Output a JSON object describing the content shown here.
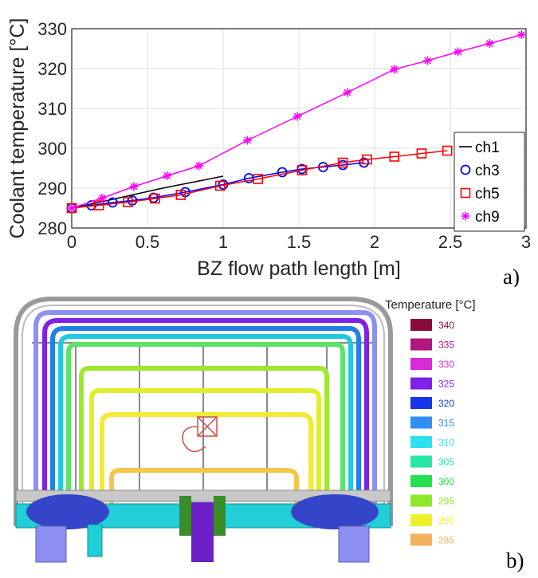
{
  "panel_a": {
    "letter": "a)",
    "legend": [
      "ch1",
      "ch3",
      "ch5",
      "ch9"
    ]
  },
  "panel_b": {
    "letter": "b)",
    "scale_title": "Temperature [°C]",
    "scale": [
      {
        "label": "340",
        "color": "#8b0a3c"
      },
      {
        "label": "335",
        "color": "#b0177e"
      },
      {
        "label": "330",
        "color": "#d92ad6"
      },
      {
        "label": "325",
        "color": "#7d22e6"
      },
      {
        "label": "320",
        "color": "#1836e8"
      },
      {
        "label": "315",
        "color": "#2f8ff2"
      },
      {
        "label": "310",
        "color": "#2de2ee"
      },
      {
        "label": "305",
        "color": "#27e6a6"
      },
      {
        "label": "300",
        "color": "#22e04e"
      },
      {
        "label": "295",
        "color": "#8fe82a"
      },
      {
        "label": "290",
        "color": "#f0f02a"
      },
      {
        "label": "285",
        "color": "#f5b25a"
      }
    ],
    "colors": {
      "gray": "#9a9a9a",
      "cyan": "#22cfd8",
      "blue_dark": "#3445c9",
      "purple_dark": "#6d1fc8",
      "green_dark": "#3a8b2a",
      "lilac": "#8d8ff0"
    }
  },
  "chart_data": {
    "type": "line",
    "title": "",
    "xlabel": "BZ flow path length [m]",
    "ylabel": "Coolant temperature [°C]",
    "xlim": [
      0,
      3
    ],
    "ylim": [
      280,
      330
    ],
    "xticks": [
      "0",
      "0.5",
      "1",
      "1.5",
      "2",
      "2.5",
      "3"
    ],
    "yticks": [
      "280",
      "290",
      "300",
      "310",
      "320",
      "330"
    ],
    "grid": true,
    "legend_position": "lower-right",
    "series": [
      {
        "name": "ch1",
        "color": "#000000",
        "marker": "none",
        "x": [
          0,
          0.2,
          0.4,
          0.6,
          0.8,
          1.0
        ],
        "y": [
          285,
          286.6,
          288.3,
          290.0,
          291.5,
          293.0
        ]
      },
      {
        "name": "ch3",
        "color": "#0000ff",
        "marker": "circle",
        "x": [
          0,
          0.13,
          0.27,
          0.4,
          0.54,
          0.75,
          1.0,
          1.17,
          1.39,
          1.52,
          1.66,
          1.79,
          1.93
        ],
        "y": [
          285,
          285.7,
          286.4,
          286.9,
          287.6,
          289.0,
          290.9,
          292.5,
          294.0,
          294.8,
          295.3,
          295.8,
          296.4
        ]
      },
      {
        "name": "ch5",
        "color": "#ff0000",
        "marker": "square",
        "x": [
          0,
          0.18,
          0.37,
          0.55,
          0.72,
          0.98,
          1.23,
          1.52,
          1.79,
          1.95,
          2.13,
          2.31,
          2.48
        ],
        "y": [
          285,
          285.7,
          286.5,
          287.4,
          288.3,
          290.6,
          292.3,
          294.5,
          296.4,
          297.2,
          297.9,
          298.7,
          299.4
        ]
      },
      {
        "name": "ch9",
        "color": "#ff00ff",
        "marker": "star",
        "x": [
          0,
          0.2,
          0.41,
          0.63,
          0.84,
          1.16,
          1.49,
          1.82,
          2.13,
          2.35,
          2.55,
          2.76,
          2.97
        ],
        "y": [
          285,
          287.5,
          290.4,
          293.1,
          295.6,
          302.0,
          308.0,
          314.0,
          319.8,
          322.0,
          324.2,
          326.3,
          328.5
        ]
      }
    ]
  }
}
